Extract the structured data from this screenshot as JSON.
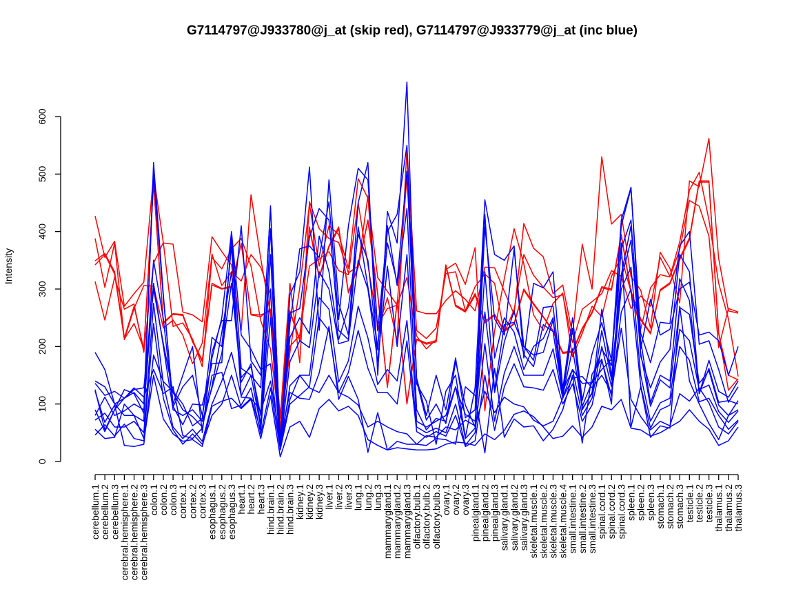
{
  "chart_data": {
    "type": "line",
    "title": "G7114797@J933780@j_at (skip red), G7114797@J933779@j_at (inc blue)",
    "xlabel": "",
    "ylabel": "Intensity",
    "ylim": [
      0,
      600
    ],
    "yticks": [
      0,
      100,
      200,
      300,
      400,
      500,
      600
    ],
    "categories": [
      "cerebellum.1",
      "cerebellum.2",
      "cerebellum.3",
      "cerebral.hemisphere.1",
      "cerebral.hemisphere.2",
      "cerebral.hemisphere.3",
      "colon.1",
      "colon.2",
      "colon.3",
      "cortex.1",
      "cortex.2",
      "cortex.3",
      "esophagus.1",
      "esophagus.2",
      "esophagus.3",
      "heart.1",
      "heart.2",
      "heart.3",
      "hind.brain.1",
      "hind.brain.2",
      "hind.brain.3",
      "kidney.1",
      "kidney.2",
      "kidney.3",
      "liver.1",
      "liver.2",
      "liver.3",
      "lung.1",
      "lung.2",
      "lung.3",
      "mammarygland.1",
      "mammarygland.2",
      "mammarygland.3",
      "olfactory.bulb.1",
      "olfactory.bulb.2",
      "olfactory.bulb.3",
      "ovary.1",
      "ovary.2",
      "ovary.3",
      "pinealgland.1",
      "pinealgland.2",
      "pinealgland.3",
      "salivary.gland.1",
      "salivary.gland.2",
      "salivary.gland.3",
      "skeletal.muscle.1",
      "skeletal.muscle.2",
      "skeletal.muscle.3",
      "skeletal.muscle.4",
      "small.intestine.1",
      "small.intestine.2",
      "small.intestine.3",
      "spinal.cord.1",
      "spinal.cord.2",
      "spinal.cord.3",
      "spleen.1",
      "spleen.2",
      "spleen.3",
      "stomach.1",
      "stomach.2",
      "stomach.3",
      "testicle.1",
      "testicle.2",
      "testicle.3",
      "thalamus.1",
      "thalamus.2",
      "thalamus.3"
    ],
    "series_colors": {
      "skip": "#ff0000",
      "inc": "#0000ff"
    },
    "series": [
      {
        "name": "skip red 1",
        "color": "#ff0000",
        "values": [
          427,
          355,
          383,
          270,
          292,
          312,
          498,
          380,
          378,
          260,
          255,
          243,
          391,
          365,
          342,
          228,
          464,
          353,
          255,
          75,
          310,
          172,
          452,
          405,
          388,
          381,
          328,
          340,
          462,
          227,
          285,
          210,
          545,
          262,
          257,
          257,
          280,
          297,
          282,
          262,
          338,
          337,
          296,
          256,
          414,
          371,
          356,
          292,
          307,
          221,
          378,
          300,
          530,
          413,
          430,
          322,
          298,
          232,
          364,
          336,
          276,
          488,
          478,
          562,
          353,
          262,
          258
        ]
      },
      {
        "name": "skip red 2",
        "color": "#ff0000",
        "values": [
          388,
          303,
          380,
          212,
          266,
          306,
          305,
          232,
          246,
          220,
          170,
          206,
          361,
          306,
          330,
          314,
          360,
          338,
          290,
          60,
          190,
          302,
          448,
          340,
          410,
          395,
          336,
          492,
          458,
          320,
          296,
          272,
          495,
          228,
          214,
          232,
          327,
          330,
          262,
          304,
          326,
          310,
          224,
          264,
          360,
          324,
          303,
          285,
          290,
          207,
          265,
          278,
          292,
          332,
          322,
          266,
          288,
          270,
          355,
          322,
          382,
          472,
          503,
          420,
          310,
          248,
          148
        ]
      },
      {
        "name": "skip red 3",
        "color": "#ff0000",
        "values": [
          313,
          246,
          320,
          265,
          274,
          190,
          345,
          381,
          235,
          241,
          213,
          165,
          355,
          335,
          370,
          388,
          340,
          245,
          196,
          50,
          200,
          220,
          340,
          352,
          365,
          332,
          325,
          450,
          342,
          238,
          266,
          272,
          320,
          218,
          196,
          212,
          334,
          345,
          308,
          372,
          88,
          227,
          318,
          405,
          344,
          255,
          228,
          275,
          293,
          182,
          223,
          270,
          252,
          322,
          356,
          295,
          230,
          302,
          325,
          321,
          369,
          454,
          444,
          392,
          198,
          266,
          260
        ]
      },
      {
        "name": "skip red 4",
        "color": "#ff0000",
        "values": [
          342,
          360,
          326,
          213,
          240,
          196,
          484,
          240,
          256,
          254,
          208,
          174,
          307,
          300,
          303,
          379,
          255,
          252,
          265,
          80,
          260,
          210,
          405,
          320,
          373,
          405,
          293,
          338,
          419,
          290,
          129,
          277,
          100,
          212,
          204,
          208,
          340,
          270,
          260,
          289,
          241,
          254,
          226,
          239,
          298,
          273,
          251,
          226,
          188,
          190,
          230,
          258,
          302,
          298,
          392,
          294,
          246,
          222,
          297,
          309,
          351,
          386,
          486,
          486,
          222,
          150,
          142
        ]
      },
      {
        "name": "skip red 5",
        "color": "#ff0000",
        "values": [
          349,
          362,
          330,
          215,
          270,
          195,
          485,
          242,
          257,
          256,
          210,
          176,
          310,
          301,
          305,
          380,
          256,
          255,
          262,
          55,
          262,
          212,
          408,
          322,
          375,
          408,
          295,
          340,
          420,
          292,
          130,
          278,
          101,
          213,
          206,
          210,
          342,
          272,
          262,
          292,
          244,
          256,
          228,
          240,
          300,
          275,
          252,
          228,
          190,
          192,
          232,
          260,
          304,
          300,
          395,
          296,
          248,
          224,
          299,
          311,
          354,
          389,
          488,
          488,
          224,
          124,
          144
        ]
      },
      {
        "name": "inc blue 1",
        "color": "#0000ff",
        "values": [
          190,
          160,
          100,
          110,
          120,
          100,
          500,
          285,
          100,
          150,
          200,
          50,
          190,
          245,
          245,
          410,
          175,
          150,
          440,
          35,
          290,
          330,
          512,
          228,
          490,
          275,
          220,
          450,
          520,
          150,
          435,
          380,
          660,
          135,
          105,
          30,
          122,
          150,
          42,
          128,
          455,
          360,
          350,
          375,
          180,
          310,
          302,
          330,
          126,
          250,
          106,
          187,
          242,
          176,
          420,
          477,
          196,
          282,
          220,
          230,
          300,
          312,
          220,
          225,
          210,
          150,
          200
        ]
      },
      {
        "name": "inc blue 2",
        "color": "#0000ff",
        "values": [
          140,
          130,
          100,
          80,
          80,
          70,
          520,
          290,
          95,
          130,
          150,
          80,
          180,
          250,
          400,
          220,
          195,
          160,
          170,
          20,
          240,
          370,
          375,
          355,
          452,
          247,
          410,
          510,
          490,
          228,
          400,
          430,
          550,
          145,
          80,
          150,
          90,
          180,
          76,
          90,
          430,
          180,
          250,
          225,
          160,
          200,
          214,
          250,
          115,
          232,
          96,
          138,
          196,
          167,
          410,
          475,
          223,
          172,
          242,
          240,
          375,
          400,
          204,
          210,
          160,
          103,
          130
        ]
      },
      {
        "name": "inc blue 3",
        "color": "#0000ff",
        "values": [
          125,
          55,
          90,
          125,
          118,
          84,
          350,
          248,
          96,
          64,
          100,
          98,
          170,
          172,
          390,
          162,
          150,
          128,
          445,
          30,
          258,
          266,
          390,
          440,
          420,
          228,
          212,
          408,
          304,
          200,
          380,
          312,
          505,
          140,
          72,
          100,
          66,
          174,
          98,
          60,
          408,
          248,
          220,
          370,
          200,
          185,
          190,
          246,
          123,
          160,
          136,
          137,
          160,
          178,
          370,
          420,
          183,
          128,
          173,
          195,
          360,
          330,
          118,
          176,
          122,
          112,
          140
        ]
      },
      {
        "name": "inc blue 4",
        "color": "#0000ff",
        "values": [
          90,
          52,
          90,
          110,
          125,
          128,
          300,
          205,
          120,
          90,
          78,
          60,
          131,
          225,
          330,
          146,
          165,
          80,
          405,
          30,
          216,
          250,
          222,
          392,
          330,
          212,
          268,
          395,
          350,
          194,
          410,
          306,
          440,
          90,
          55,
          75,
          70,
          130,
          40,
          58,
          330,
          125,
          238,
          242,
          200,
          176,
          268,
          270,
          126,
          230,
          90,
          120,
          265,
          148,
          325,
          410,
          210,
          102,
          150,
          140,
          318,
          280,
          118,
          162,
          103,
          106,
          100
        ]
      },
      {
        "name": "inc blue 5",
        "color": "#0000ff",
        "values": [
          80,
          112,
          80,
          88,
          100,
          90,
          310,
          200,
          90,
          80,
          90,
          70,
          128,
          188,
          310,
          138,
          170,
          64,
          360,
          26,
          174,
          210,
          198,
          330,
          300,
          205,
          210,
          350,
          300,
          174,
          340,
          200,
          360,
          70,
          60,
          70,
          80,
          130,
          82,
          70,
          260,
          120,
          208,
          262,
          186,
          165,
          238,
          226,
          114,
          196,
          92,
          118,
          228,
          142,
          318,
          385,
          188,
          96,
          142,
          128,
          268,
          256,
          136,
          158,
          98,
          80,
          90
        ]
      },
      {
        "name": "inc blue 6",
        "color": "#0000ff",
        "values": [
          72,
          84,
          60,
          60,
          70,
          50,
          275,
          135,
          60,
          40,
          56,
          35,
          100,
          140,
          190,
          114,
          150,
          60,
          300,
          22,
          132,
          150,
          150,
          285,
          265,
          138,
          175,
          270,
          215,
          134,
          160,
          140,
          245,
          60,
          50,
          58,
          50,
          100,
          28,
          50,
          205,
          70,
          154,
          200,
          150,
          150,
          150,
          196,
          110,
          160,
          80,
          110,
          200,
          130,
          300,
          338,
          150,
          70,
          102,
          110,
          230,
          210,
          125,
          133,
          87,
          68,
          88
        ]
      },
      {
        "name": "inc blue 7",
        "color": "#0000ff",
        "values": [
          56,
          40,
          42,
          100,
          80,
          40,
          240,
          110,
          55,
          30,
          48,
          30,
          80,
          100,
          150,
          94,
          110,
          55,
          250,
          20,
          100,
          115,
          130,
          250,
          227,
          120,
          155,
          228,
          162,
          120,
          120,
          100,
          210,
          52,
          42,
          52,
          44,
          80,
          26,
          36,
          150,
          54,
          130,
          170,
          130,
          128,
          124,
          160,
          100,
          135,
          70,
          98,
          176,
          114,
          260,
          300,
          132,
          58,
          90,
          98,
          200,
          176,
          104,
          110,
          80,
          56,
          72
        ]
      },
      {
        "name": "inc blue 8",
        "color": "#0000ff",
        "values": [
          122,
          68,
          98,
          28,
          26,
          30,
          185,
          139,
          122,
          100,
          62,
          75,
          216,
          200,
          375,
          112,
          110,
          88,
          140,
          38,
          120,
          110,
          108,
          154,
          235,
          108,
          148,
          108,
          16,
          85,
          20,
          35,
          30,
          30,
          28,
          40,
          38,
          30,
          130,
          115,
          15,
          162,
          42,
          74,
          60,
          62,
          36,
          56,
          90,
          150,
          32,
          152,
          178,
          100,
          380,
          60,
          130,
          42,
          62,
          58,
          270,
          140,
          100,
          66,
          38,
          80,
          106
        ]
      },
      {
        "name": "inc blue 9",
        "color": "#0000ff",
        "values": [
          136,
          115,
          122,
          110,
          128,
          112,
          160,
          118,
          130,
          45,
          40,
          58,
          150,
          155,
          92,
          98,
          128,
          48,
          128,
          22,
          108,
          150,
          128,
          120,
          150,
          120,
          112,
          98,
          60,
          70,
          60,
          52,
          48,
          30,
          45,
          42,
          60,
          55,
          72,
          62,
          122,
          85,
          112,
          100,
          95,
          72,
          62,
          70,
          110,
          145,
          148,
          128,
          150,
          120,
          232,
          108,
          78,
          55,
          70,
          62,
          118,
          105,
          128,
          102,
          60,
          48,
          70
        ]
      },
      {
        "name": "inc blue 10",
        "color": "#0000ff",
        "values": [
          46,
          64,
          44,
          65,
          40,
          36,
          150,
          74,
          48,
          35,
          38,
          26,
          96,
          105,
          110,
          92,
          108,
          40,
          114,
          8,
          60,
          70,
          42,
          92,
          108,
          88,
          96,
          80,
          38,
          28,
          20,
          24,
          22,
          20,
          20,
          22,
          30,
          34,
          32,
          28,
          48,
          38,
          54,
          82,
          88,
          78,
          60,
          40,
          44,
          62,
          42,
          60,
          96,
          90,
          108,
          58,
          55,
          44,
          50,
          60,
          70,
          90,
          70,
          56,
          28,
          36,
          60
        ]
      }
    ]
  }
}
